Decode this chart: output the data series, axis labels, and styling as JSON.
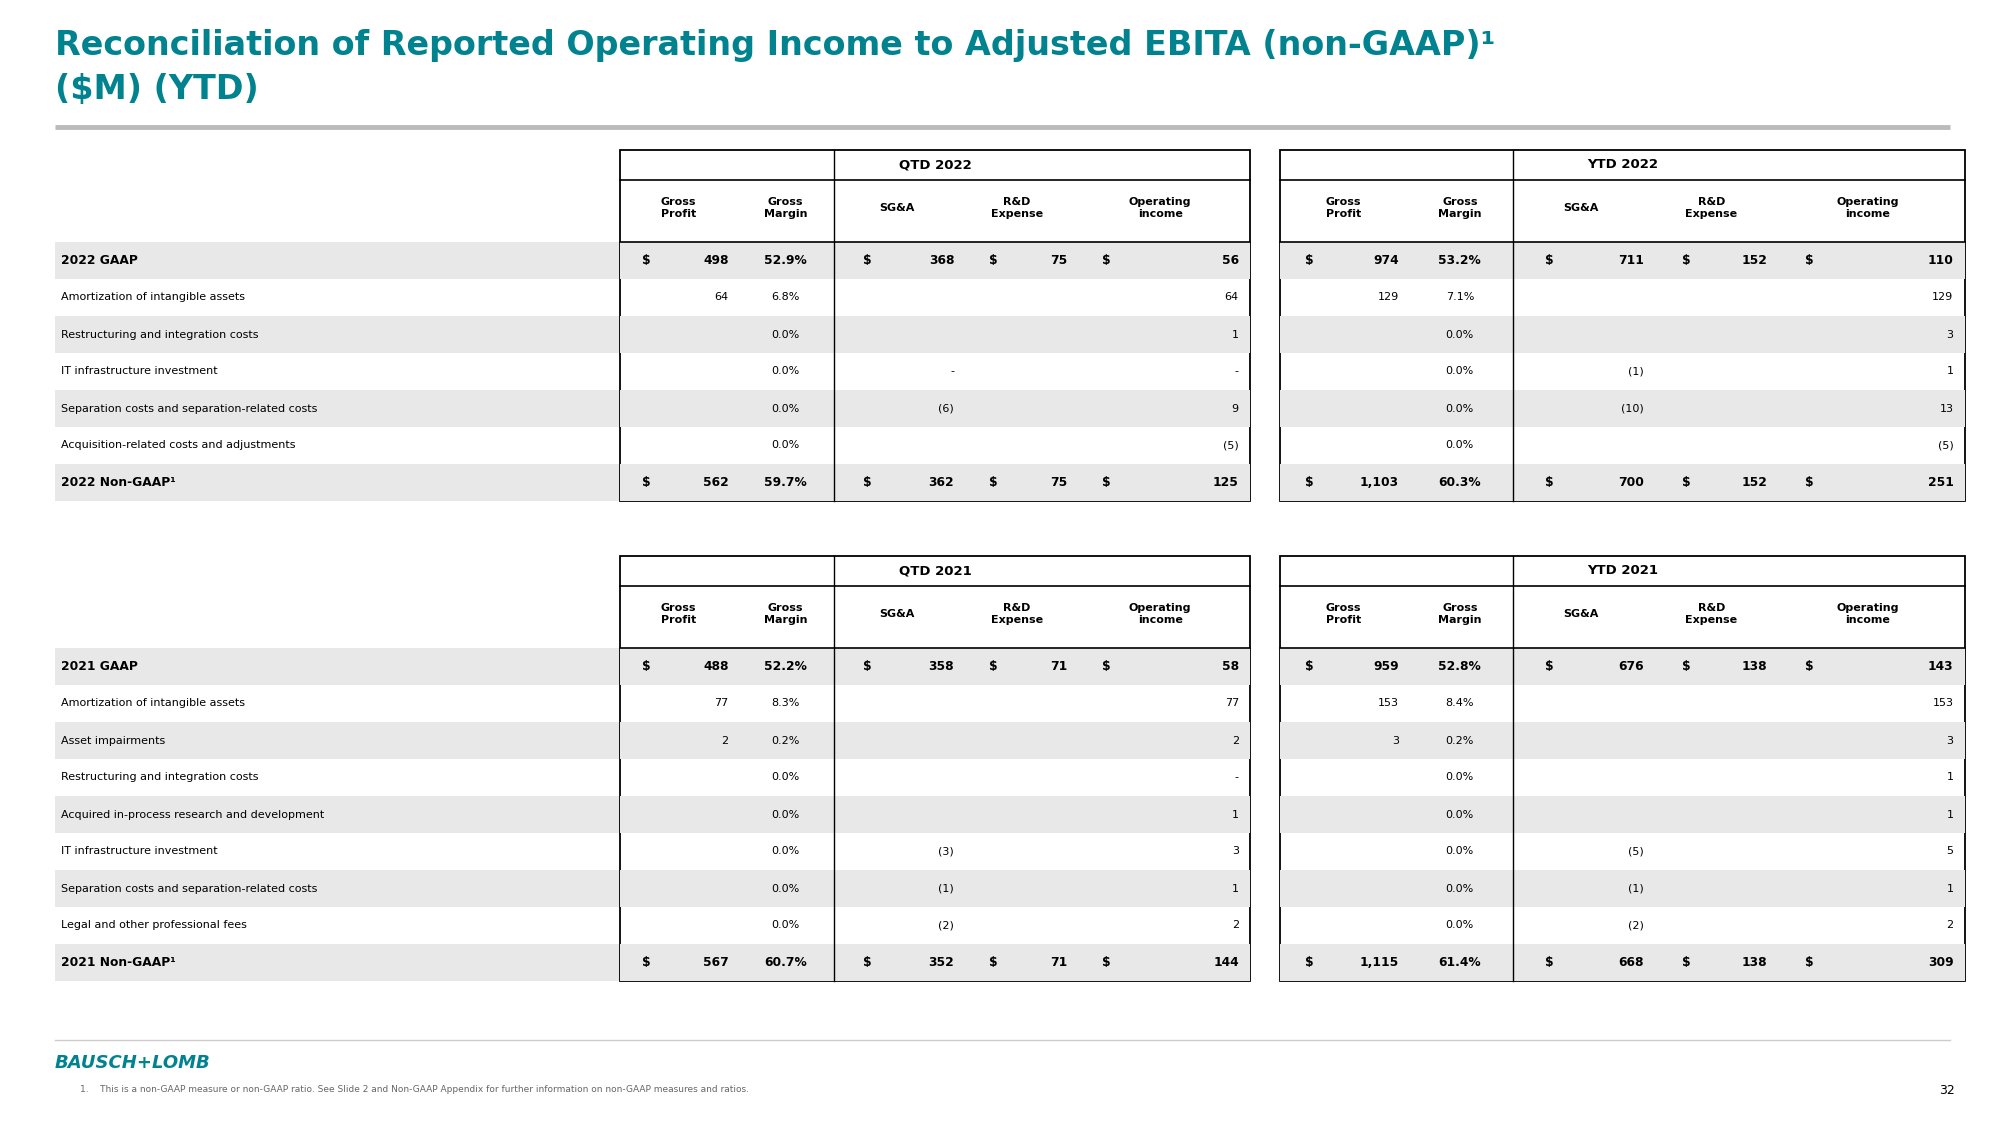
{
  "title_line1": "Reconciliation of Reported Operating Income to Adjusted EBITA (non-GAAP)¹",
  "title_line2": "($M) (YTD)",
  "title_color": "#00838F",
  "bg_color": "#F0F0F0",
  "content_bg": "#FFFFFF",
  "separator_color": "#AAAAAA",
  "page_number": "32",
  "footnote": "1.    This is a non-GAAP measure or non-GAAP ratio. See Slide 2 and Non-GAAP Appendix for further information on non-GAAP measures and ratios.",
  "bausch_lomb_color": "#00838F",
  "shaded_color": "#E8E8E8",
  "table1_title": "QTD 2022",
  "table2_title": "YTD 2022",
  "table3_title": "QTD 2021",
  "table4_title": "YTD 2021",
  "row_labels_2022": [
    "2022 GAAP",
    "Amortization of intangible assets",
    "Restructuring and integration costs",
    "IT infrastructure investment",
    "Separation costs and separation-related costs",
    "Acquisition-related costs and adjustments",
    "2022 Non-GAAP¹"
  ],
  "bold_rows_2022": [
    0,
    6
  ],
  "shaded_rows_2022": [
    0,
    2,
    4,
    6
  ],
  "qtd2022_data": [
    [
      "$",
      "498",
      "52.9%",
      "$",
      "368",
      "$",
      "75",
      "$",
      "56"
    ],
    [
      "",
      "64",
      "6.8%",
      "",
      "",
      "",
      "",
      "",
      "64"
    ],
    [
      "",
      "",
      "0.0%",
      "",
      "",
      "",
      "",
      "",
      "1"
    ],
    [
      "",
      "",
      "0.0%",
      "",
      "-",
      "",
      "",
      "",
      "-"
    ],
    [
      "",
      "",
      "0.0%",
      "",
      "(6)",
      "",
      "",
      "",
      "9"
    ],
    [
      "",
      "",
      "0.0%",
      "",
      "",
      "",
      "",
      "",
      "(5)"
    ],
    [
      "$",
      "562",
      "59.7%",
      "$",
      "362",
      "$",
      "75",
      "$",
      "125"
    ]
  ],
  "ytd2022_data": [
    [
      "$",
      "974",
      "53.2%",
      "$",
      "711",
      "$",
      "152",
      "$",
      "110"
    ],
    [
      "",
      "129",
      "7.1%",
      "",
      "",
      "",
      "",
      "",
      "129"
    ],
    [
      "",
      "",
      "0.0%",
      "",
      "",
      "",
      "",
      "",
      "3"
    ],
    [
      "",
      "",
      "0.0%",
      "",
      "(1)",
      "",
      "",
      "",
      "1"
    ],
    [
      "",
      "",
      "0.0%",
      "",
      "(10)",
      "",
      "",
      "",
      "13"
    ],
    [
      "",
      "",
      "0.0%",
      "",
      "",
      "",
      "",
      "",
      "(5)"
    ],
    [
      "$",
      "1,103",
      "60.3%",
      "$",
      "700",
      "$",
      "152",
      "$",
      "251"
    ]
  ],
  "row_labels_2021": [
    "2021 GAAP",
    "Amortization of intangible assets",
    "Asset impairments",
    "Restructuring and integration costs",
    "Acquired in-process research and development",
    "IT infrastructure investment",
    "Separation costs and separation-related costs",
    "Legal and other professional fees",
    "2021 Non-GAAP¹"
  ],
  "bold_rows_2021": [
    0,
    8
  ],
  "shaded_rows_2021": [
    0,
    2,
    4,
    6,
    8
  ],
  "qtd2021_data": [
    [
      "$",
      "488",
      "52.2%",
      "$",
      "358",
      "$",
      "71",
      "$",
      "58"
    ],
    [
      "",
      "77",
      "8.3%",
      "",
      "",
      "",
      "",
      "",
      "77"
    ],
    [
      "",
      "2",
      "0.2%",
      "",
      "",
      "",
      "",
      "",
      "2"
    ],
    [
      "",
      "",
      "0.0%",
      "",
      "",
      "",
      "",
      "",
      "-"
    ],
    [
      "",
      "",
      "0.0%",
      "",
      "",
      "",
      "",
      "",
      "1"
    ],
    [
      "",
      "",
      "0.0%",
      "",
      "(3)",
      "",
      "",
      "",
      "3"
    ],
    [
      "",
      "",
      "0.0%",
      "",
      "(1)",
      "",
      "",
      "",
      "1"
    ],
    [
      "",
      "",
      "0.0%",
      "",
      "(2)",
      "",
      "",
      "",
      "2"
    ],
    [
      "$",
      "567",
      "60.7%",
      "$",
      "352",
      "$",
      "71",
      "$",
      "144"
    ]
  ],
  "ytd2021_data": [
    [
      "$",
      "959",
      "52.8%",
      "$",
      "676",
      "$",
      "138",
      "$",
      "143"
    ],
    [
      "",
      "153",
      "8.4%",
      "",
      "",
      "",
      "",
      "",
      "153"
    ],
    [
      "",
      "3",
      "0.2%",
      "",
      "",
      "",
      "",
      "",
      "3"
    ],
    [
      "",
      "",
      "0.0%",
      "",
      "",
      "",
      "",
      "",
      "1"
    ],
    [
      "",
      "",
      "0.0%",
      "",
      "",
      "",
      "",
      "",
      "1"
    ],
    [
      "",
      "",
      "0.0%",
      "",
      "(5)",
      "",
      "",
      "",
      "5"
    ],
    [
      "",
      "",
      "0.0%",
      "",
      "(1)",
      "",
      "",
      "",
      "1"
    ],
    [
      "",
      "",
      "0.0%",
      "",
      "(2)",
      "",
      "",
      "",
      "2"
    ],
    [
      "$",
      "1,115",
      "61.4%",
      "$",
      "668",
      "$",
      "138",
      "$",
      "309"
    ]
  ]
}
